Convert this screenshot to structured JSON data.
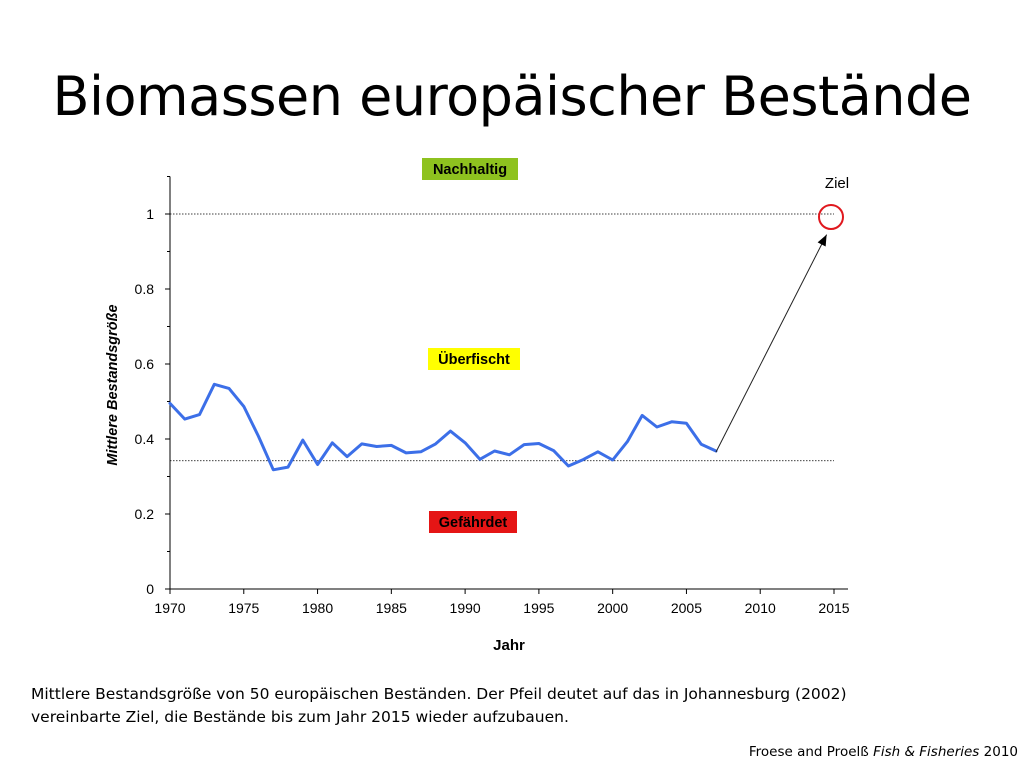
{
  "slide": {
    "title": "Biomassen europäischer Bestände"
  },
  "chart_data": {
    "type": "line",
    "xlabel": "Jahr",
    "ylabel": "Mittlere Bestandsgröße",
    "xlim": [
      1970,
      2015
    ],
    "ylim": [
      0,
      1.1
    ],
    "x_ticks": [
      1970,
      1975,
      1980,
      1985,
      1990,
      1995,
      2000,
      2005,
      2010,
      2015
    ],
    "y_ticks": [
      0,
      0.2,
      0.4,
      0.6,
      0.8,
      1
    ],
    "y_tick_labels": [
      "0",
      "0.2",
      "0.4",
      "0.6",
      "0.8",
      "1"
    ],
    "grid": false,
    "series": [
      {
        "color": "#3c6fe8",
        "x": [
          1970,
          1971,
          1972,
          1973,
          1974,
          1975,
          1976,
          1977,
          1978,
          1979,
          1980,
          1981,
          1982,
          1983,
          1984,
          1985,
          1986,
          1987,
          1988,
          1989,
          1990,
          1991,
          1992,
          1993,
          1994,
          1995,
          1996,
          1997,
          1998,
          1999,
          2000,
          2001,
          2002,
          2003,
          2004,
          2005,
          2006,
          2007
        ],
        "y": [
          0.495,
          0.453,
          0.465,
          0.546,
          0.535,
          0.487,
          0.407,
          0.318,
          0.325,
          0.397,
          0.332,
          0.39,
          0.353,
          0.387,
          0.38,
          0.383,
          0.363,
          0.366,
          0.387,
          0.421,
          0.39,
          0.346,
          0.368,
          0.358,
          0.385,
          0.388,
          0.369,
          0.328,
          0.345,
          0.366,
          0.344,
          0.393,
          0.463,
          0.432,
          0.446,
          0.442,
          0.386,
          0.368
        ]
      }
    ],
    "reference_lines": [
      {
        "y": 1.0,
        "style": "dotted"
      },
      {
        "y": 0.342,
        "style": "dotted"
      }
    ],
    "annotations": {
      "nachhaltig": {
        "text": "Nachhaltig",
        "bg": "#8ec21f"
      },
      "ueberfischt": {
        "text": "Überfischt",
        "bg": "#ffff00"
      },
      "gefaehrdet": {
        "text": "Gefährdet",
        "bg": "#e51515"
      },
      "ziel": {
        "text": "Ziel",
        "circle_color": "#e0181e",
        "year": 2015,
        "value": 1.0
      },
      "arrow": {
        "from": [
          2007,
          0.365
        ],
        "to": [
          2014.5,
          0.945
        ]
      }
    }
  },
  "caption": {
    "line1": "Mittlere Bestandsgröße von 50 europäischen Beständen.  Der Pfeil deutet auf das in Johannesburg (2002)",
    "line2": "vereinbarte Ziel, die Bestände bis zum Jahr 2015 wieder aufzubauen."
  },
  "citation": {
    "prefix": "Froese and Proelß ",
    "journal": "Fish & Fisheries",
    "year": " 2010"
  }
}
